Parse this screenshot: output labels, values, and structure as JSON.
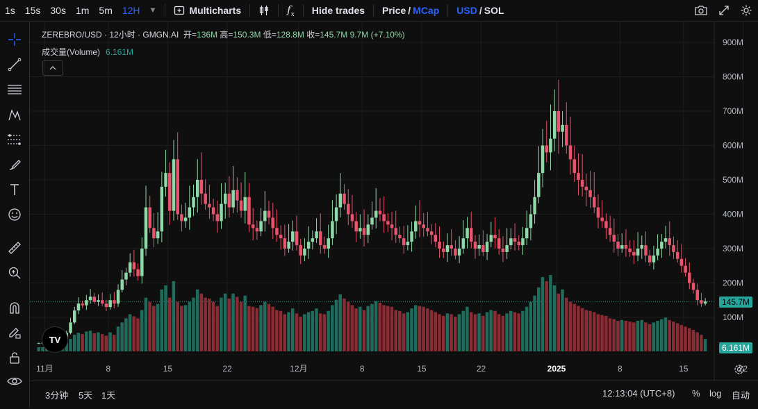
{
  "toolbar": {
    "intervals": [
      "1s",
      "15s",
      "30s",
      "1m",
      "5m",
      "12H"
    ],
    "active_interval": "12H",
    "multicharts": "Multicharts",
    "hide_trades": "Hide trades",
    "price": "Price",
    "slash": "/",
    "mcap": "MCap",
    "usd": "USD",
    "sol": "SOL"
  },
  "legend": {
    "symbol": "ZEREBRO/USD · 12小时 · GMGN.AI",
    "open_label": "开=",
    "open": "136M",
    "high_label": "高=",
    "high": "150.3M",
    "low_label": "低=",
    "low": "128.8M",
    "close_label": "收=",
    "close": "145.7M",
    "change": "9.7M (+7.10%)",
    "volume_label": "成交量(Volume)",
    "volume": "6.161M"
  },
  "bottom": {
    "ranges": [
      "3分钟",
      "5天",
      "1天"
    ],
    "time": "12:13:04 (UTC+8)",
    "percent": "%",
    "log": "log",
    "auto": "自动"
  },
  "colors": {
    "up": "#8fd8a8",
    "down": "#e8546c",
    "vol_up": "#1f6b5c",
    "vol_down": "#8a2c34",
    "accent": "#2962ff"
  },
  "chart_data": {
    "type": "candlestick",
    "y_axis_ticks": [
      "100M",
      "200M",
      "300M",
      "400M",
      "500M",
      "600M",
      "700M",
      "800M",
      "900M"
    ],
    "x_axis_ticks": [
      "11月",
      "8",
      "15",
      "22",
      "12月",
      "8",
      "15",
      "22",
      "2025",
      "8",
      "15",
      "22"
    ],
    "last_price_label": "145.7M",
    "last_volume_label": "6.161M",
    "close_series": [
      25,
      26,
      27,
      28,
      30,
      32,
      38,
      55,
      85,
      120,
      140,
      135,
      150,
      160,
      145,
      150,
      140,
      130,
      150,
      140,
      180,
      210,
      230,
      260,
      240,
      220,
      300,
      420,
      360,
      330,
      350,
      480,
      520,
      410,
      560,
      400,
      380,
      390,
      420,
      450,
      500,
      460,
      430,
      420,
      400,
      380,
      430,
      460,
      420,
      470,
      440,
      410,
      450,
      370,
      360,
      350,
      380,
      410,
      390,
      360,
      340,
      330,
      300,
      320,
      350,
      310,
      280,
      300,
      320,
      330,
      350,
      310,
      300,
      330,
      380,
      420,
      460,
      430,
      400,
      380,
      350,
      360,
      340,
      370,
      390,
      410,
      400,
      380,
      370,
      360,
      340,
      330,
      310,
      320,
      350,
      380,
      370,
      360,
      350,
      340,
      320,
      300,
      290,
      310,
      300,
      280,
      300,
      330,
      360,
      320,
      300,
      310,
      290,
      320,
      340,
      330,
      300,
      290,
      310,
      330,
      320,
      310,
      330,
      360,
      400,
      450,
      520,
      600,
      580,
      620,
      700,
      640,
      660,
      600,
      560,
      520,
      500,
      480,
      470,
      450,
      420,
      390,
      380,
      360,
      340,
      320,
      300,
      310,
      300,
      290,
      280,
      300,
      310,
      280,
      260,
      280,
      300,
      320,
      330,
      310,
      290,
      270,
      250,
      230,
      200,
      180,
      150,
      140,
      146
    ],
    "volume_series": [
      10,
      10,
      12,
      14,
      15,
      16,
      18,
      20,
      30,
      40,
      45,
      42,
      48,
      50,
      44,
      46,
      42,
      38,
      46,
      40,
      60,
      70,
      80,
      90,
      85,
      80,
      100,
      130,
      120,
      110,
      115,
      150,
      160,
      130,
      170,
      120,
      110,
      112,
      120,
      130,
      150,
      140,
      130,
      128,
      120,
      110,
      130,
      140,
      128,
      140,
      132,
      120,
      135,
      110,
      108,
      105,
      112,
      120,
      115,
      108,
      100,
      98,
      90,
      95,
      104,
      92,
      84,
      90,
      95,
      98,
      104,
      92,
      90,
      98,
      112,
      125,
      138,
      128,
      120,
      112,
      104,
      108,
      100,
      110,
      115,
      122,
      118,
      112,
      110,
      108,
      100,
      98,
      92,
      95,
      104,
      112,
      110,
      108,
      104,
      100,
      95,
      90,
      86,
      92,
      90,
      84,
      90,
      98,
      108,
      95,
      90,
      92,
      86,
      95,
      100,
      98,
      90,
      86,
      92,
      98,
      95,
      92,
      98,
      108,
      120,
      135,
      155,
      180,
      170,
      185,
      160,
      140,
      150,
      130,
      120,
      115,
      110,
      105,
      100,
      98,
      95,
      90,
      88,
      86,
      80,
      78,
      74,
      76,
      74,
      72,
      70,
      74,
      76,
      70,
      66,
      70,
      74,
      78,
      82,
      76,
      72,
      68,
      64,
      60,
      56,
      52,
      46,
      40,
      30
    ],
    "y_unit": "USD market cap",
    "ylim": [
      0,
      950
    ],
    "grid": true
  }
}
